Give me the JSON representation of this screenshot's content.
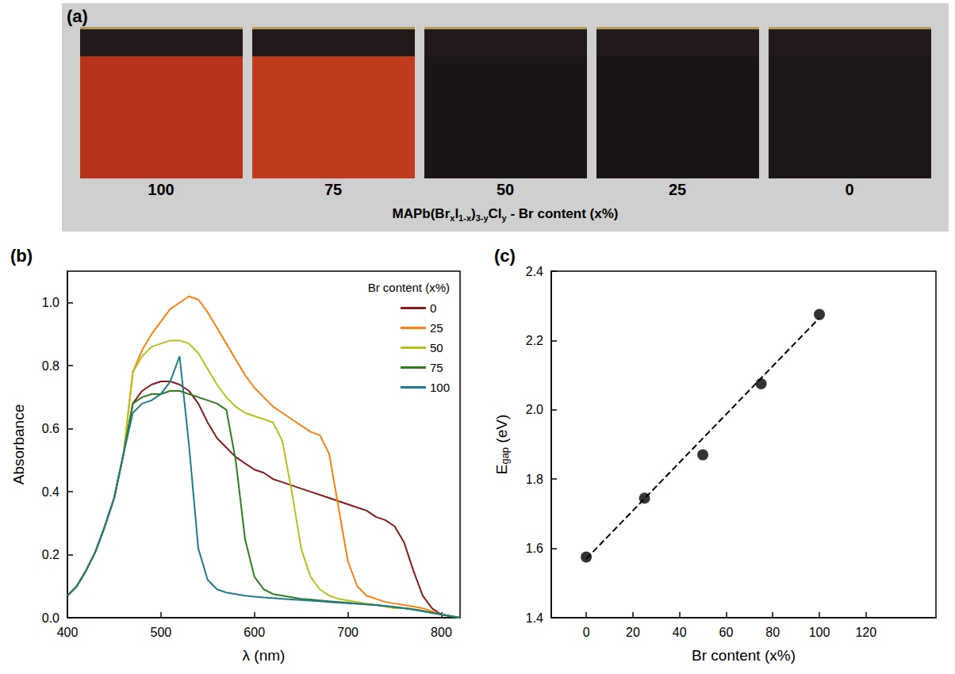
{
  "photo": {
    "panel": "(a)",
    "caption": [
      {
        "text": "MAPb(Br"
      },
      {
        "text": "x",
        "sub": true
      },
      {
        "text": "I"
      },
      {
        "text": "1-x",
        "sub": true
      },
      {
        "text": ")"
      },
      {
        "text": "3-y",
        "sub": true
      },
      {
        "text": "Cl"
      },
      {
        "text": "y",
        "sub": true
      },
      {
        "text": " - Br content (x%)"
      }
    ],
    "samples": [
      {
        "label": "100",
        "color": "#b8321a"
      },
      {
        "label": "75",
        "color": "#c03a1c"
      },
      {
        "label": "50",
        "color": "#1c1515"
      },
      {
        "label": "25",
        "color": "#1a1414"
      },
      {
        "label": "0",
        "color": "#1d1616"
      }
    ]
  },
  "chart_data": [
    {
      "type": "line",
      "panel": "(b)",
      "xlabel": "λ (nm)",
      "ylabel": "Absorbance",
      "legend_title": "Br content (x%)",
      "legend": "upper right",
      "grid": false,
      "xlim": [
        400,
        820
      ],
      "xticks": [
        400,
        500,
        600,
        700,
        800
      ],
      "ylim": [
        0,
        1.1
      ],
      "yticks": [
        {
          "value": 0,
          "label": "0.0"
        },
        0.2,
        0.4,
        0.6,
        0.8,
        {
          "value": 1,
          "label": "1.0"
        }
      ],
      "x": [
        400,
        410,
        420,
        430,
        440,
        450,
        460,
        470,
        480,
        490,
        500,
        510,
        520,
        530,
        540,
        550,
        560,
        570,
        580,
        590,
        600,
        610,
        620,
        630,
        640,
        650,
        660,
        670,
        680,
        690,
        700,
        710,
        720,
        730,
        740,
        750,
        760,
        770,
        780,
        790,
        800,
        810,
        820
      ],
      "series": [
        {
          "name": "0",
          "color": "#8b1a1a",
          "values": [
            0.07,
            0.1,
            0.15,
            0.21,
            0.29,
            0.38,
            0.52,
            0.68,
            0.72,
            0.74,
            0.75,
            0.75,
            0.74,
            0.72,
            0.68,
            0.62,
            0.57,
            0.54,
            0.51,
            0.49,
            0.47,
            0.46,
            0.44,
            0.43,
            0.42,
            0.41,
            0.4,
            0.39,
            0.38,
            0.37,
            0.36,
            0.35,
            0.34,
            0.32,
            0.31,
            0.29,
            0.24,
            0.15,
            0.07,
            0.03,
            0.01,
            0.005,
            0
          ]
        },
        {
          "name": "25",
          "color": "#ff7f0e",
          "values": [
            0.07,
            0.1,
            0.15,
            0.21,
            0.29,
            0.38,
            0.52,
            0.78,
            0.85,
            0.9,
            0.94,
            0.98,
            1.0,
            1.02,
            1.01,
            0.97,
            0.92,
            0.87,
            0.82,
            0.77,
            0.73,
            0.7,
            0.67,
            0.65,
            0.63,
            0.61,
            0.59,
            0.58,
            0.52,
            0.35,
            0.18,
            0.1,
            0.07,
            0.06,
            0.05,
            0.045,
            0.04,
            0.035,
            0.03,
            0.02,
            0.01,
            0.005,
            0
          ]
        },
        {
          "name": "50",
          "color": "#b5c21b",
          "values": [
            0.07,
            0.1,
            0.15,
            0.21,
            0.29,
            0.38,
            0.52,
            0.78,
            0.83,
            0.86,
            0.87,
            0.88,
            0.88,
            0.87,
            0.84,
            0.79,
            0.74,
            0.7,
            0.67,
            0.65,
            0.64,
            0.63,
            0.62,
            0.56,
            0.4,
            0.22,
            0.13,
            0.09,
            0.07,
            0.06,
            0.055,
            0.05,
            0.045,
            0.04,
            0.035,
            0.03,
            0.03,
            0.025,
            0.02,
            0.015,
            0.01,
            0.005,
            0
          ]
        },
        {
          "name": "75",
          "color": "#2e7d1e",
          "values": [
            0.07,
            0.1,
            0.15,
            0.21,
            0.29,
            0.38,
            0.52,
            0.68,
            0.7,
            0.71,
            0.71,
            0.72,
            0.72,
            0.71,
            0.7,
            0.69,
            0.68,
            0.66,
            0.5,
            0.25,
            0.13,
            0.09,
            0.075,
            0.07,
            0.065,
            0.06,
            0.058,
            0.055,
            0.052,
            0.05,
            0.048,
            0.045,
            0.042,
            0.04,
            0.037,
            0.034,
            0.03,
            0.027,
            0.022,
            0.016,
            0.01,
            0.005,
            0
          ]
        },
        {
          "name": "100",
          "color": "#1f7a8c",
          "values": [
            0.07,
            0.1,
            0.15,
            0.21,
            0.29,
            0.38,
            0.52,
            0.65,
            0.68,
            0.69,
            0.71,
            0.75,
            0.83,
            0.55,
            0.22,
            0.12,
            0.09,
            0.08,
            0.075,
            0.07,
            0.067,
            0.064,
            0.062,
            0.06,
            0.058,
            0.056,
            0.054,
            0.052,
            0.05,
            0.048,
            0.046,
            0.044,
            0.042,
            0.04,
            0.037,
            0.034,
            0.03,
            0.026,
            0.021,
            0.015,
            0.01,
            0.005,
            0
          ]
        }
      ]
    },
    {
      "type": "scatter",
      "panel": "(c)",
      "xlabel": "Br content (x%)",
      "ylabel": [
        {
          "text": "E"
        },
        {
          "text": "gap",
          "sub": true
        },
        {
          "text": " (eV)"
        }
      ],
      "grid": false,
      "xlim": [
        -15,
        150
      ],
      "xticks": [
        0,
        20,
        40,
        60,
        80,
        100,
        120
      ],
      "ylim": [
        1.4,
        2.4
      ],
      "yticks": [
        1.4,
        1.6,
        1.8,
        {
          "value": 2,
          "label": "2.0"
        },
        2.2,
        2.4
      ],
      "series": [
        {
          "type": "scatter",
          "marker": "circle",
          "color": "#000000",
          "x": [
            0,
            25,
            50,
            75,
            100
          ],
          "values": [
            1.575,
            1.745,
            1.87,
            2.075,
            2.275
          ]
        },
        {
          "type": "line",
          "line_style": "dashed",
          "color": "#000000",
          "x": [
            0,
            100
          ],
          "values": [
            1.57,
            2.265
          ]
        }
      ]
    }
  ]
}
